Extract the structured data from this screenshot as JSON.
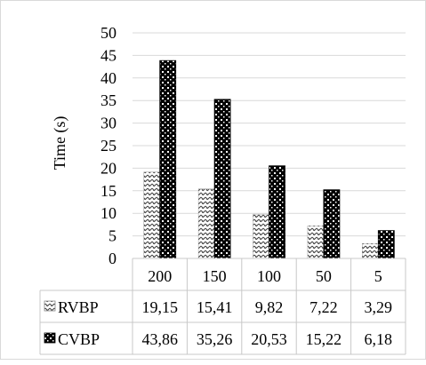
{
  "chart_data": {
    "type": "bar",
    "ylabel": "Time (s)",
    "ylim": [
      0,
      50
    ],
    "yticks": [
      0,
      5,
      10,
      15,
      20,
      25,
      30,
      35,
      40,
      45,
      50
    ],
    "categories": [
      "200",
      "150",
      "100",
      "50",
      "5"
    ],
    "grid": true,
    "legend": "data-table-rows",
    "series": [
      {
        "name": "RVBP",
        "values": [
          19.15,
          15.41,
          9.82,
          7.22,
          3.29
        ],
        "labels": [
          "19,15",
          "15,41",
          "9,82",
          "7,22",
          "3,29"
        ],
        "pattern": "zigzag-light"
      },
      {
        "name": "CVBP",
        "values": [
          43.86,
          35.26,
          20.53,
          15.22,
          6.18
        ],
        "labels": [
          "43,86",
          "35,26",
          "20,53",
          "15,22",
          "6,18"
        ],
        "pattern": "checker-dark"
      }
    ]
  }
}
